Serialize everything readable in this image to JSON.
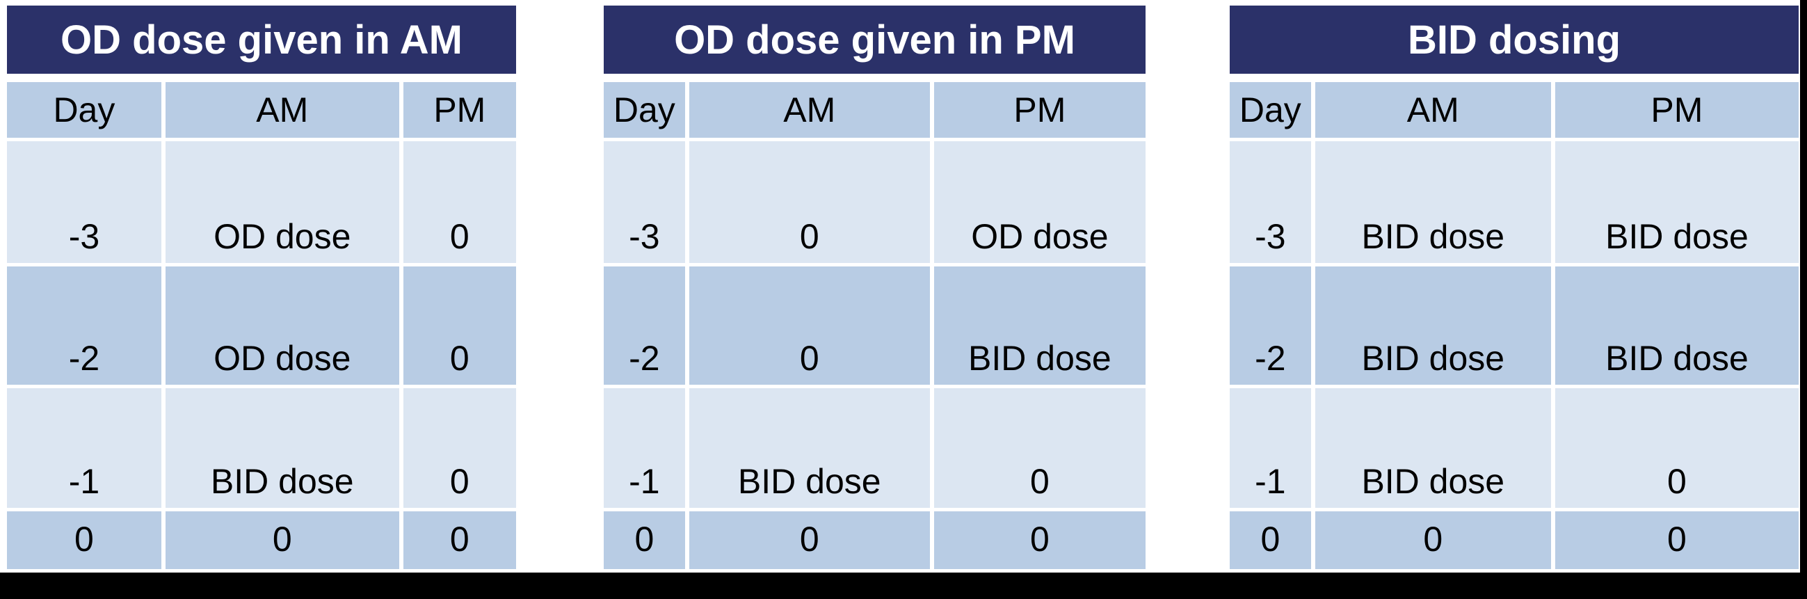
{
  "colors": {
    "title_bg": "#2b3169",
    "title_text": "#ffffff",
    "header_bg": "#b8cce4",
    "row_light": "#dce6f2",
    "row_dark": "#b8cce4",
    "cell_text": "#000000",
    "frame": "#000000",
    "page_bg": "#ffffff"
  },
  "tables": [
    {
      "title": "OD dose given in AM",
      "columns": [
        "Day",
        "AM",
        "PM"
      ],
      "rows": [
        [
          "-3",
          "OD dose",
          "0"
        ],
        [
          "-2",
          "OD dose",
          "0"
        ],
        [
          "-1",
          "BID dose",
          "0"
        ],
        [
          "0",
          "0",
          "0"
        ]
      ]
    },
    {
      "title": "OD dose given in PM",
      "columns": [
        "Day",
        "AM",
        "PM"
      ],
      "rows": [
        [
          "-3",
          "0",
          "OD dose"
        ],
        [
          "-2",
          "0",
          "BID dose"
        ],
        [
          "-1",
          "BID dose",
          "0"
        ],
        [
          "0",
          "0",
          "0"
        ]
      ]
    },
    {
      "title": "BID dosing",
      "columns": [
        "Day",
        "AM",
        "PM"
      ],
      "rows": [
        [
          "-3",
          "BID dose",
          "BID dose"
        ],
        [
          "-2",
          "BID dose",
          "BID dose"
        ],
        [
          "-1",
          "BID dose",
          "0"
        ],
        [
          "0",
          "0",
          "0"
        ]
      ]
    }
  ]
}
